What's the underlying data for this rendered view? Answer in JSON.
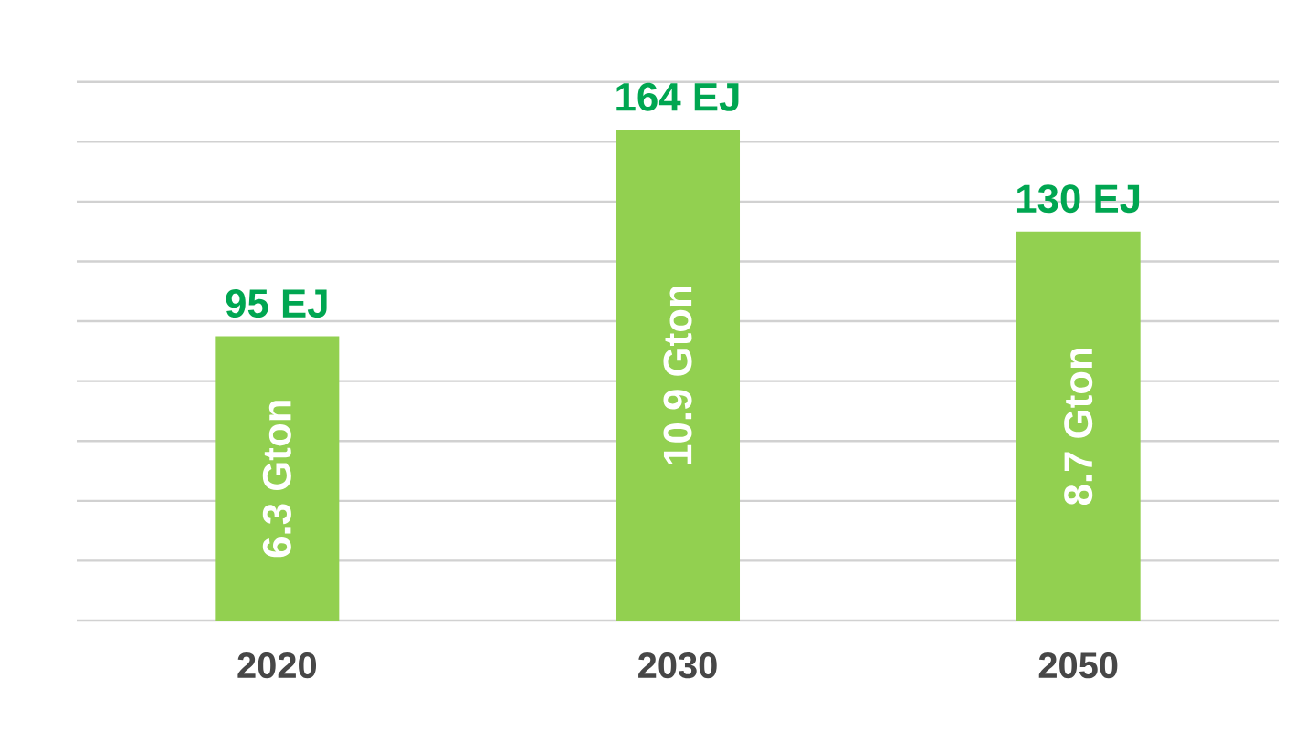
{
  "chart_data": {
    "type": "bar",
    "categories": [
      "2020",
      "2030",
      "2050"
    ],
    "values": [
      95,
      164,
      130
    ],
    "color": "#92d050",
    "value_labels": [
      "95 EJ",
      "164 EJ",
      "130 EJ"
    ],
    "grid": "y",
    "annotations": [
      "6.3 Gton",
      "10.9 Gton",
      "8.7 Gton"
    ]
  }
}
